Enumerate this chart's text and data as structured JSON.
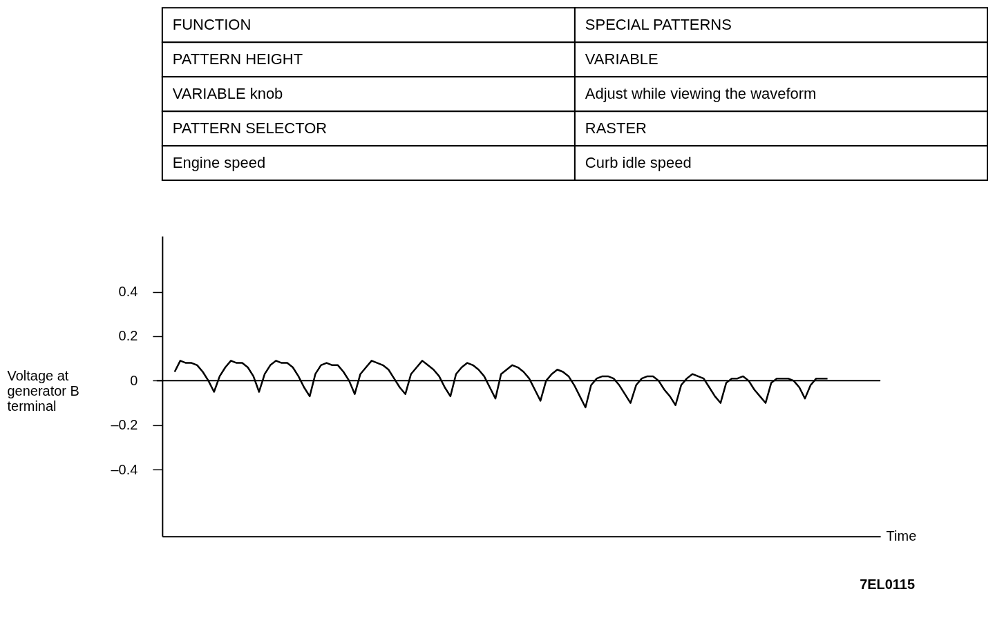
{
  "chart_data": [
    {
      "type": "other",
      "annotations": [
        "FUNCTION",
        "SPECIAL PATTERNS",
        "PATTERN HEIGHT",
        "VARIABLE",
        "VARIABLE knob",
        "Adjust while viewing the waveform",
        "PATTERN SELECTOR",
        "RASTER",
        "Engine speed",
        "Curb idle speed"
      ]
    },
    {
      "type": "line",
      "xlabel": "Time",
      "ylabel": "Voltage at generator B terminal",
      "categories": [
        null,
        null,
        null,
        null,
        null,
        null,
        null,
        null,
        null,
        null,
        null,
        null,
        null,
        null,
        null,
        null,
        null,
        null,
        null,
        null,
        null,
        null,
        null,
        null,
        null,
        null,
        null,
        null,
        null,
        null,
        null,
        null,
        null,
        null,
        null,
        null,
        null,
        null,
        null,
        null,
        null,
        null,
        null,
        null,
        null,
        null,
        null,
        null,
        null,
        null,
        null,
        null,
        null,
        null,
        null,
        null,
        null,
        null,
        null,
        null,
        null,
        null,
        null,
        null,
        null,
        null,
        null,
        null,
        null,
        null,
        null,
        null,
        null,
        null,
        null,
        null,
        null,
        null,
        null,
        null,
        null,
        null,
        null,
        null,
        null,
        null,
        null,
        null,
        null,
        null,
        null,
        null,
        null,
        null,
        null,
        null,
        null,
        null,
        null,
        null,
        null,
        null,
        null,
        null,
        null,
        null,
        null,
        null,
        null,
        null,
        null,
        null,
        null,
        null,
        null,
        null,
        null
      ],
      "series": [
        {
          "color": "#000000",
          "values": [
            0.04,
            0.09,
            0.08,
            0.08,
            0.07,
            0.04,
            0.0,
            -0.05,
            0.02,
            0.06,
            0.09,
            0.08,
            0.08,
            0.06,
            0.02,
            -0.05,
            0.03,
            0.07,
            0.09,
            0.08,
            0.08,
            0.06,
            0.02,
            -0.03,
            -0.07,
            0.03,
            0.07,
            0.08,
            0.07,
            0.07,
            0.04,
            0.0,
            -0.06,
            0.03,
            0.06,
            0.09,
            0.08,
            0.07,
            0.05,
            0.01,
            -0.03,
            -0.06,
            0.03,
            0.06,
            0.09,
            0.07,
            0.05,
            0.02,
            -0.03,
            -0.07,
            0.03,
            0.06,
            0.08,
            0.07,
            0.05,
            0.02,
            -0.03,
            -0.08,
            0.03,
            0.05,
            0.07,
            0.06,
            0.04,
            0.01,
            -0.04,
            -0.09,
            0.0,
            0.03,
            0.05,
            0.04,
            0.02,
            -0.02,
            -0.07,
            -0.12,
            -0.02,
            0.01,
            0.02,
            0.02,
            0.01,
            -0.02,
            -0.06,
            -0.1,
            -0.02,
            0.01,
            0.02,
            0.02,
            0.0,
            -0.04,
            -0.07,
            -0.11,
            -0.02,
            0.01,
            0.03,
            0.02,
            0.01,
            -0.03,
            -0.07,
            -0.1,
            -0.01,
            0.01,
            0.01,
            0.02,
            0.0,
            -0.04,
            -0.07,
            -0.1,
            -0.01,
            0.01,
            0.01,
            0.01,
            0.0,
            -0.03,
            -0.08,
            -0.02,
            0.01,
            0.01,
            0.01
          ]
        }
      ],
      "ylim": [
        -0.7,
        0.65
      ],
      "yticks": [
        {
          "value": -0.4,
          "label": "–0.4"
        },
        {
          "value": -0.2,
          "label": "–0.2"
        },
        0,
        0.2,
        0.4
      ],
      "ref_lines": [
        {
          "axis": "y",
          "value": 0
        }
      ],
      "grid": false,
      "legend": false,
      "marker": "none",
      "line_style": "solid",
      "tick_labels": "y",
      "annotations": [
        "7EL0115"
      ]
    }
  ]
}
